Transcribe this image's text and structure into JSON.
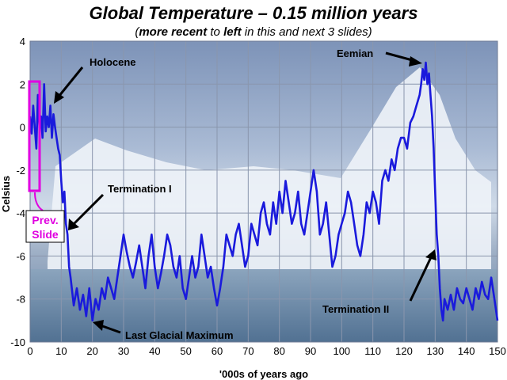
{
  "title": "Global Temperature – 0.15 million years",
  "subtitle": {
    "open": "(",
    "bold1": "more recent",
    "mid1": " to ",
    "bold2": "left",
    "rest": " in this and next 3 slides)"
  },
  "colors": {
    "series": "#1a1adc",
    "annotation_box": "#e000e0",
    "grid": "#8a96ad"
  },
  "prev_slide_label": [
    "Prev.",
    "Slide"
  ],
  "chart_data": {
    "type": "line",
    "xlabel": "'000s of years ago",
    "ylabel": "Celsius",
    "xlim": [
      0,
      150
    ],
    "ylim": [
      -10,
      4
    ],
    "xticks": [
      0,
      10,
      20,
      30,
      40,
      50,
      60,
      70,
      80,
      90,
      100,
      110,
      120,
      130,
      140,
      150
    ],
    "yticks": [
      4,
      2,
      0,
      -2,
      -4,
      -6,
      -8,
      -10
    ],
    "grid": true,
    "series": [
      {
        "x": [
          0,
          0.5,
          1,
          1.5,
          2,
          2.5,
          3,
          3.5,
          4,
          4.5,
          5,
          5.5,
          6,
          6.5,
          7,
          7.5,
          8,
          8.5,
          9,
          9.5,
          10,
          10.5,
          11,
          11.5,
          12,
          12.5,
          13,
          14,
          15,
          16,
          17,
          18,
          19,
          20,
          21,
          22,
          23,
          24,
          25,
          26,
          27,
          28,
          29,
          30,
          31,
          32,
          33,
          34,
          35,
          36,
          37,
          38,
          39,
          40,
          41,
          42,
          43,
          44,
          45,
          46,
          47,
          48,
          49,
          50,
          51,
          52,
          53,
          54,
          55,
          56,
          57,
          58,
          59,
          60,
          61,
          62,
          63,
          64,
          65,
          66,
          67,
          68,
          69,
          70,
          71,
          72,
          73,
          74,
          75,
          76,
          77,
          78,
          79,
          80,
          81,
          82,
          83,
          84,
          85,
          86,
          87,
          88,
          89,
          90,
          91,
          92,
          93,
          94,
          95,
          96,
          97,
          98,
          99,
          100,
          101,
          102,
          103,
          104,
          105,
          106,
          107,
          108,
          109,
          110,
          111,
          112,
          113,
          114,
          115,
          116,
          117,
          118,
          119,
          120,
          121,
          122,
          123,
          124,
          125,
          125.5,
          126,
          126.5,
          127,
          127.5,
          128,
          128.5,
          129,
          129.5,
          130,
          130.5,
          131,
          131.5,
          132,
          132.5,
          133,
          134,
          135,
          136,
          137,
          138,
          139,
          140,
          141,
          142,
          143,
          144,
          145,
          146,
          147,
          148,
          149,
          150
        ],
        "values": [
          0.5,
          -0.3,
          1.0,
          0.0,
          -1.0,
          1.5,
          0.0,
          0.5,
          -0.5,
          2.0,
          -0.2,
          0.5,
          0.0,
          1.0,
          -0.5,
          0.6,
          0.0,
          -0.5,
          -1.0,
          -1.3,
          -2.5,
          -3.5,
          -3.0,
          -4.5,
          -5.0,
          -6.5,
          -7.0,
          -8.3,
          -7.5,
          -8.5,
          -7.8,
          -8.8,
          -7.5,
          -9.0,
          -8.0,
          -8.5,
          -7.5,
          -8.0,
          -7.0,
          -7.5,
          -8.0,
          -7.0,
          -6.0,
          -5.0,
          -5.8,
          -6.5,
          -7.0,
          -6.3,
          -5.5,
          -6.5,
          -7.5,
          -6.0,
          -5.0,
          -6.5,
          -7.5,
          -6.8,
          -6.0,
          -5.0,
          -5.5,
          -6.5,
          -7.0,
          -6.0,
          -7.5,
          -8.0,
          -7.0,
          -6.0,
          -7.0,
          -6.5,
          -5.0,
          -6.0,
          -7.0,
          -6.5,
          -7.5,
          -8.3,
          -7.5,
          -6.5,
          -5.0,
          -5.5,
          -6.0,
          -5.0,
          -4.5,
          -5.5,
          -6.5,
          -6.0,
          -4.5,
          -5.0,
          -5.5,
          -4.0,
          -3.5,
          -4.5,
          -5.0,
          -3.5,
          -4.5,
          -3.0,
          -4.0,
          -2.5,
          -3.5,
          -4.5,
          -4.0,
          -3.0,
          -4.5,
          -5.0,
          -4.0,
          -3.0,
          -2.0,
          -3.0,
          -5.0,
          -4.5,
          -3.5,
          -5.0,
          -6.5,
          -6.0,
          -5.0,
          -4.5,
          -4.0,
          -3.0,
          -3.5,
          -4.5,
          -5.5,
          -6.0,
          -5.0,
          -3.5,
          -4.0,
          -3.0,
          -3.5,
          -4.5,
          -2.5,
          -2.0,
          -2.5,
          -1.5,
          -2.0,
          -1.0,
          -0.5,
          -0.5,
          -1.0,
          0.2,
          0.5,
          1.0,
          1.5,
          2.0,
          2.7,
          2.2,
          3.0,
          2.0,
          2.5,
          1.5,
          0.5,
          -1.0,
          -3.0,
          -5.0,
          -6.0,
          -7.5,
          -8.5,
          -9.0,
          -8.0,
          -8.5,
          -7.8,
          -8.5,
          -7.5,
          -8.0,
          -8.2,
          -7.5,
          -8.0,
          -8.5,
          -7.5,
          -8.0,
          -7.2,
          -7.8,
          -8.0,
          -7.0,
          -8.0,
          -9.0
        ]
      }
    ],
    "annotations": [
      "Holocene",
      "Termination I",
      "Last Glacial Maximum",
      "Eemian",
      "Termination II"
    ]
  }
}
